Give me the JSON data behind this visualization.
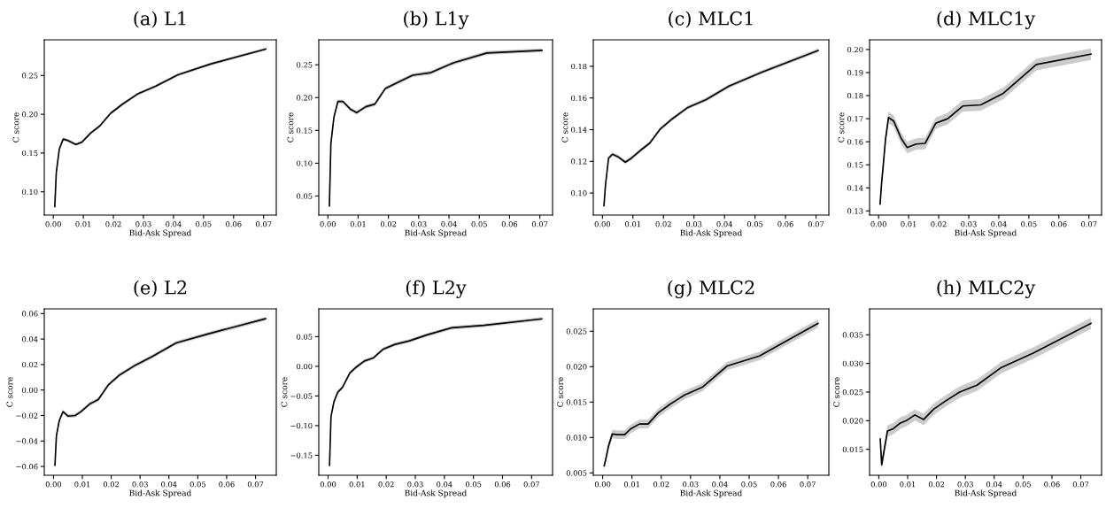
{
  "chart_data": [
    {
      "type": "line",
      "title": "(a) L1",
      "xlabel": "Bid-Ask Spread",
      "ylabel": "C score",
      "xlim": [
        -0.003,
        0.0742
      ],
      "ylim": [
        0.07,
        0.296
      ],
      "xticks": [
        {
          "value": 0,
          "label": "0.00"
        },
        {
          "value": 0.01,
          "label": "0.01"
        },
        {
          "value": 0.02,
          "label": "0.02"
        },
        {
          "value": 0.03,
          "label": "0.03"
        },
        {
          "value": 0.04,
          "label": "0.04"
        },
        {
          "value": 0.05,
          "label": "0.05"
        },
        {
          "value": 0.06,
          "label": "0.06"
        },
        {
          "value": 0.07,
          "label": "0.07"
        }
      ],
      "yticks": [
        {
          "value": 0.1,
          "label": "0.10"
        },
        {
          "value": 0.15,
          "label": "0.15"
        },
        {
          "value": 0.2,
          "label": "0.20"
        },
        {
          "value": 0.25,
          "label": "0.25"
        }
      ],
      "x": [
        0.0005,
        0.001,
        0.002,
        0.0033,
        0.005,
        0.0075,
        0.0095,
        0.0125,
        0.0155,
        0.019,
        0.023,
        0.028,
        0.034,
        0.0415,
        0.0525,
        0.0707
      ],
      "series": [
        {
          "color": "#000000",
          "values": [
            0.081,
            0.125,
            0.155,
            0.168,
            0.166,
            0.161,
            0.164,
            0.176,
            0.185,
            0.201,
            0.213,
            0.226,
            0.236,
            0.251,
            0.265,
            0.284
          ],
          "lower": [
            0.079,
            0.123,
            0.153,
            0.166,
            0.164,
            0.159,
            0.162,
            0.174,
            0.183,
            0.199,
            0.211,
            0.224,
            0.234,
            0.249,
            0.263,
            0.282
          ],
          "upper": [
            0.083,
            0.127,
            0.157,
            0.17,
            0.168,
            0.163,
            0.166,
            0.178,
            0.187,
            0.203,
            0.215,
            0.228,
            0.238,
            0.253,
            0.267,
            0.286
          ]
        }
      ]
    },
    {
      "type": "line",
      "title": "(b) L1y",
      "xlabel": "Bid-Ask Spread",
      "ylabel": "C score",
      "xlim": [
        -0.003,
        0.0742
      ],
      "ylim": [
        0.021,
        0.288
      ],
      "xticks": [
        {
          "value": 0,
          "label": "0.00"
        },
        {
          "value": 0.01,
          "label": "0.01"
        },
        {
          "value": 0.02,
          "label": "0.02"
        },
        {
          "value": 0.03,
          "label": "0.03"
        },
        {
          "value": 0.04,
          "label": "0.04"
        },
        {
          "value": 0.05,
          "label": "0.05"
        },
        {
          "value": 0.06,
          "label": "0.06"
        },
        {
          "value": 0.07,
          "label": "0.07"
        }
      ],
      "yticks": [
        {
          "value": 0.05,
          "label": "0.05"
        },
        {
          "value": 0.1,
          "label": "0.10"
        },
        {
          "value": 0.15,
          "label": "0.15"
        },
        {
          "value": 0.2,
          "label": "0.20"
        },
        {
          "value": 0.25,
          "label": "0.25"
        }
      ],
      "x": [
        0.0005,
        0.001,
        0.002,
        0.0033,
        0.005,
        0.0075,
        0.0095,
        0.0125,
        0.0155,
        0.019,
        0.023,
        0.028,
        0.034,
        0.0415,
        0.0525,
        0.0707
      ],
      "series": [
        {
          "color": "#000000",
          "values": [
            0.035,
            0.13,
            0.17,
            0.194,
            0.194,
            0.182,
            0.177,
            0.186,
            0.19,
            0.214,
            0.223,
            0.234,
            0.238,
            0.253,
            0.268,
            0.272
          ],
          "lower": [
            0.032,
            0.127,
            0.167,
            0.191,
            0.191,
            0.179,
            0.174,
            0.183,
            0.187,
            0.211,
            0.22,
            0.231,
            0.235,
            0.25,
            0.265,
            0.269
          ],
          "upper": [
            0.038,
            0.133,
            0.173,
            0.197,
            0.197,
            0.185,
            0.18,
            0.189,
            0.193,
            0.217,
            0.226,
            0.237,
            0.241,
            0.256,
            0.271,
            0.275
          ]
        }
      ]
    },
    {
      "type": "line",
      "title": "(c) MLC1",
      "xlabel": "Bid-Ask Spread",
      "ylabel": "C score",
      "xlim": [
        -0.003,
        0.0742
      ],
      "ylim": [
        0.0861,
        0.1967
      ],
      "xticks": [
        {
          "value": 0,
          "label": "0.00"
        },
        {
          "value": 0.01,
          "label": "0.01"
        },
        {
          "value": 0.02,
          "label": "0.02"
        },
        {
          "value": 0.03,
          "label": "0.03"
        },
        {
          "value": 0.04,
          "label": "0.04"
        },
        {
          "value": 0.05,
          "label": "0.05"
        },
        {
          "value": 0.06,
          "label": "0.06"
        },
        {
          "value": 0.07,
          "label": "0.07"
        }
      ],
      "yticks": [
        {
          "value": 0.1,
          "label": "0.10"
        },
        {
          "value": 0.12,
          "label": "0.12"
        },
        {
          "value": 0.14,
          "label": "0.14"
        },
        {
          "value": 0.16,
          "label": "0.16"
        },
        {
          "value": 0.18,
          "label": "0.18"
        }
      ],
      "x": [
        0.0005,
        0.001,
        0.002,
        0.0033,
        0.005,
        0.0075,
        0.0095,
        0.0125,
        0.0155,
        0.019,
        0.023,
        0.028,
        0.034,
        0.0415,
        0.0525,
        0.0707
      ],
      "series": [
        {
          "color": "#000000",
          "values": [
            0.092,
            0.105,
            0.122,
            0.1245,
            0.123,
            0.1195,
            0.122,
            0.127,
            0.1315,
            0.1405,
            0.147,
            0.154,
            0.159,
            0.1675,
            0.1765,
            0.19
          ],
          "lower": [
            0.0908,
            0.1038,
            0.1208,
            0.1233,
            0.1218,
            0.1183,
            0.1208,
            0.1258,
            0.1303,
            0.1393,
            0.1458,
            0.1528,
            0.1578,
            0.1663,
            0.1753,
            0.1888
          ],
          "upper": [
            0.0932,
            0.1062,
            0.1232,
            0.1257,
            0.1242,
            0.1207,
            0.1232,
            0.1282,
            0.1327,
            0.1417,
            0.1482,
            0.1552,
            0.1602,
            0.1687,
            0.1777,
            0.1912
          ]
        }
      ]
    },
    {
      "type": "line",
      "title": "(d) MLC1y",
      "xlabel": "Bid-Ask Spread",
      "ylabel": "C score",
      "xlim": [
        -0.003,
        0.0742
      ],
      "ylim": [
        0.1282,
        0.2042
      ],
      "xticks": [
        {
          "value": 0,
          "label": "0.00"
        },
        {
          "value": 0.01,
          "label": "0.01"
        },
        {
          "value": 0.02,
          "label": "0.02"
        },
        {
          "value": 0.03,
          "label": "0.03"
        },
        {
          "value": 0.04,
          "label": "0.04"
        },
        {
          "value": 0.05,
          "label": "0.05"
        },
        {
          "value": 0.06,
          "label": "0.06"
        },
        {
          "value": 0.07,
          "label": "0.07"
        }
      ],
      "yticks": [
        {
          "value": 0.13,
          "label": "0.13"
        },
        {
          "value": 0.14,
          "label": "0.14"
        },
        {
          "value": 0.15,
          "label": "0.15"
        },
        {
          "value": 0.16,
          "label": "0.16"
        },
        {
          "value": 0.17,
          "label": "0.17"
        },
        {
          "value": 0.18,
          "label": "0.18"
        },
        {
          "value": 0.19,
          "label": "0.19"
        },
        {
          "value": 0.2,
          "label": "0.20"
        }
      ],
      "x": [
        0.0005,
        0.001,
        0.0015,
        0.0023,
        0.0033,
        0.005,
        0.0075,
        0.0095,
        0.0125,
        0.0155,
        0.019,
        0.023,
        0.028,
        0.034,
        0.0415,
        0.0525,
        0.0707
      ],
      "series": [
        {
          "color": "#000000",
          "values": [
            0.133,
            0.142,
            0.149,
            0.161,
            0.1705,
            0.169,
            0.1615,
            0.1575,
            0.159,
            0.1593,
            0.168,
            0.17,
            0.1755,
            0.176,
            0.181,
            0.1935,
            0.198
          ],
          "lower": [
            0.1305,
            0.1395,
            0.1465,
            0.1585,
            0.168,
            0.1665,
            0.159,
            0.155,
            0.1565,
            0.1568,
            0.1655,
            0.1675,
            0.173,
            0.1735,
            0.1785,
            0.191,
            0.1955
          ],
          "upper": [
            0.1355,
            0.1445,
            0.1515,
            0.1635,
            0.173,
            0.1715,
            0.164,
            0.16,
            0.1615,
            0.1618,
            0.1705,
            0.1725,
            0.178,
            0.1785,
            0.1835,
            0.196,
            0.2005
          ]
        }
      ]
    },
    {
      "type": "line",
      "title": "(e) L2",
      "xlabel": "Bid-Ask Spread",
      "ylabel": "C score",
      "xlim": [
        -0.0032,
        0.0772
      ],
      "ylim": [
        -0.0669,
        0.0637
      ],
      "xticks": [
        {
          "value": 0,
          "label": "0.00"
        },
        {
          "value": 0.01,
          "label": "0.01"
        },
        {
          "value": 0.02,
          "label": "0.02"
        },
        {
          "value": 0.03,
          "label": "0.03"
        },
        {
          "value": 0.04,
          "label": "0.04"
        },
        {
          "value": 0.05,
          "label": "0.05"
        },
        {
          "value": 0.06,
          "label": "0.06"
        },
        {
          "value": 0.07,
          "label": "0.07"
        }
      ],
      "yticks": [
        {
          "value": -0.06,
          "label": "−0.06"
        },
        {
          "value": -0.04,
          "label": "−0.04"
        },
        {
          "value": -0.02,
          "label": "−0.02"
        },
        {
          "value": 0,
          "label": "0.00"
        },
        {
          "value": 0.02,
          "label": "0.02"
        },
        {
          "value": 0.04,
          "label": "0.04"
        },
        {
          "value": 0.06,
          "label": "0.06"
        }
      ],
      "x": [
        0.0005,
        0.001,
        0.002,
        0.0033,
        0.005,
        0.0075,
        0.0095,
        0.0125,
        0.0155,
        0.019,
        0.023,
        0.028,
        0.034,
        0.0425,
        0.0535,
        0.0735
      ],
      "series": [
        {
          "color": "#000000",
          "values": [
            -0.059,
            -0.036,
            -0.024,
            -0.017,
            -0.0205,
            -0.02,
            -0.017,
            -0.011,
            -0.0075,
            0.004,
            0.012,
            0.019,
            0.026,
            0.037,
            0.044,
            0.056
          ],
          "lower": [
            -0.0605,
            -0.0375,
            -0.0255,
            -0.0185,
            -0.022,
            -0.0215,
            -0.0185,
            -0.0125,
            -0.009,
            0.0025,
            0.0105,
            0.0175,
            0.0245,
            0.0355,
            0.0425,
            0.0545
          ],
          "upper": [
            -0.0575,
            -0.0345,
            -0.0225,
            -0.0155,
            -0.019,
            -0.0185,
            -0.0155,
            -0.0095,
            -0.006,
            0.0055,
            0.0135,
            0.0205,
            0.0275,
            0.0385,
            0.0455,
            0.0575
          ]
        }
      ]
    },
    {
      "type": "line",
      "title": "(f) L2y",
      "xlabel": "Bid-Ask Spread",
      "ylabel": "C score",
      "xlim": [
        -0.0032,
        0.0772
      ],
      "ylim": [
        -0.1837,
        0.0969
      ],
      "xticks": [
        {
          "value": 0,
          "label": "0.00"
        },
        {
          "value": 0.01,
          "label": "0.01"
        },
        {
          "value": 0.02,
          "label": "0.02"
        },
        {
          "value": 0.03,
          "label": "0.03"
        },
        {
          "value": 0.04,
          "label": "0.04"
        },
        {
          "value": 0.05,
          "label": "0.05"
        },
        {
          "value": 0.06,
          "label": "0.06"
        },
        {
          "value": 0.07,
          "label": "0.07"
        }
      ],
      "yticks": [
        {
          "value": -0.15,
          "label": "−0.15"
        },
        {
          "value": -0.1,
          "label": "−0.10"
        },
        {
          "value": -0.05,
          "label": "−0.05"
        },
        {
          "value": 0,
          "label": "0.00"
        },
        {
          "value": 0.05,
          "label": "0.05"
        }
      ],
      "x": [
        0.0005,
        0.001,
        0.002,
        0.0033,
        0.005,
        0.0075,
        0.0095,
        0.0125,
        0.0155,
        0.019,
        0.023,
        0.028,
        0.034,
        0.0425,
        0.0535,
        0.0735
      ],
      "series": [
        {
          "color": "#000000",
          "values": [
            -0.167,
            -0.085,
            -0.06,
            -0.044,
            -0.035,
            -0.011,
            -0.002,
            0.009,
            0.014,
            0.029,
            0.037,
            0.043,
            0.053,
            0.065,
            0.069,
            0.08
          ],
          "lower": [
            -0.17,
            -0.088,
            -0.063,
            -0.047,
            -0.038,
            -0.014,
            -0.005,
            0.006,
            0.011,
            0.026,
            0.034,
            0.04,
            0.05,
            0.062,
            0.066,
            0.077
          ],
          "upper": [
            -0.164,
            -0.082,
            -0.057,
            -0.041,
            -0.032,
            -0.008,
            0.001,
            0.012,
            0.017,
            0.032,
            0.04,
            0.046,
            0.056,
            0.068,
            0.072,
            0.083
          ]
        }
      ]
    },
    {
      "type": "line",
      "title": "(g) MLC2",
      "xlabel": "Bid-Ask Spread",
      "ylabel": "C score",
      "xlim": [
        -0.0032,
        0.0772
      ],
      "ylim": [
        0.00467,
        0.02816
      ],
      "xticks": [
        {
          "value": 0,
          "label": "0.00"
        },
        {
          "value": 0.01,
          "label": "0.01"
        },
        {
          "value": 0.02,
          "label": "0.02"
        },
        {
          "value": 0.03,
          "label": "0.03"
        },
        {
          "value": 0.04,
          "label": "0.04"
        },
        {
          "value": 0.05,
          "label": "0.05"
        },
        {
          "value": 0.06,
          "label": "0.06"
        },
        {
          "value": 0.07,
          "label": "0.07"
        }
      ],
      "yticks": [
        {
          "value": 0.005,
          "label": "0.005"
        },
        {
          "value": 0.01,
          "label": "0.010"
        },
        {
          "value": 0.015,
          "label": "0.015"
        },
        {
          "value": 0.02,
          "label": "0.020"
        },
        {
          "value": 0.025,
          "label": "0.025"
        }
      ],
      "x": [
        0.0005,
        0.001,
        0.002,
        0.0033,
        0.005,
        0.0075,
        0.0095,
        0.0125,
        0.0155,
        0.019,
        0.023,
        0.028,
        0.034,
        0.0425,
        0.0535,
        0.0735
      ],
      "series": [
        {
          "color": "#000000",
          "values": [
            0.006,
            0.0068,
            0.0088,
            0.0105,
            0.0104,
            0.0104,
            0.0112,
            0.0119,
            0.0119,
            0.0135,
            0.0147,
            0.016,
            0.0171,
            0.0201,
            0.0215,
            0.0261
          ],
          "lower": [
            0.0054,
            0.0062,
            0.0082,
            0.0099,
            0.0098,
            0.0098,
            0.0106,
            0.0113,
            0.0113,
            0.0129,
            0.0141,
            0.0154,
            0.0165,
            0.0195,
            0.0209,
            0.0255
          ],
          "upper": [
            0.0066,
            0.0074,
            0.0094,
            0.0111,
            0.011,
            0.011,
            0.0118,
            0.0125,
            0.0125,
            0.0141,
            0.0153,
            0.0166,
            0.0177,
            0.0207,
            0.0221,
            0.0267
          ]
        }
      ]
    },
    {
      "type": "line",
      "title": "(h) MLC2y",
      "xlabel": "Bid-Ask Spread",
      "ylabel": "C score",
      "xlim": [
        -0.0032,
        0.0772
      ],
      "ylim": [
        0.01047,
        0.03953
      ],
      "xticks": [
        {
          "value": 0,
          "label": "0.00"
        },
        {
          "value": 0.01,
          "label": "0.01"
        },
        {
          "value": 0.02,
          "label": "0.02"
        },
        {
          "value": 0.03,
          "label": "0.03"
        },
        {
          "value": 0.04,
          "label": "0.04"
        },
        {
          "value": 0.05,
          "label": "0.05"
        },
        {
          "value": 0.06,
          "label": "0.06"
        },
        {
          "value": 0.07,
          "label": "0.07"
        }
      ],
      "yticks": [
        {
          "value": 0.015,
          "label": "0.015"
        },
        {
          "value": 0.02,
          "label": "0.020"
        },
        {
          "value": 0.025,
          "label": "0.025"
        },
        {
          "value": 0.03,
          "label": "0.030"
        },
        {
          "value": 0.035,
          "label": "0.035"
        }
      ],
      "x": [
        0.0005,
        0.001,
        0.003,
        0.005,
        0.0075,
        0.0095,
        0.0125,
        0.0155,
        0.019,
        0.023,
        0.028,
        0.034,
        0.0425,
        0.0535,
        0.0735
      ],
      "series": [
        {
          "color": "#000000",
          "values": [
            0.0168,
            0.0123,
            0.0182,
            0.0186,
            0.0196,
            0.02,
            0.021,
            0.0202,
            0.022,
            0.0234,
            0.025,
            0.0262,
            0.0293,
            0.0318,
            0.037
          ],
          "lower": [
            0.0158,
            0.0113,
            0.0172,
            0.0176,
            0.0186,
            0.019,
            0.02,
            0.0192,
            0.021,
            0.0224,
            0.024,
            0.0252,
            0.0283,
            0.0308,
            0.036
          ],
          "upper": [
            0.0178,
            0.0133,
            0.0192,
            0.0196,
            0.0206,
            0.021,
            0.022,
            0.0212,
            0.023,
            0.0244,
            0.026,
            0.0272,
            0.0303,
            0.0328,
            0.038
          ]
        }
      ]
    }
  ]
}
